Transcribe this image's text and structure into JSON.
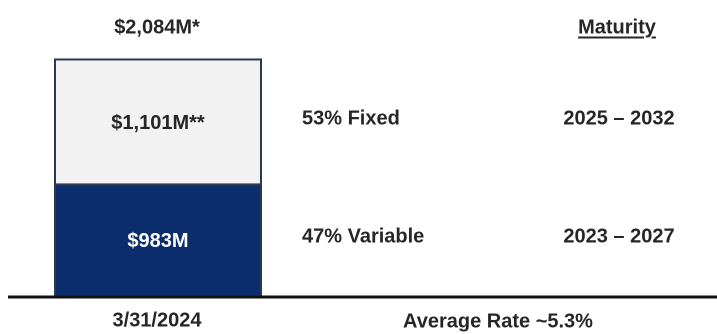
{
  "chart_data": {
    "type": "bar",
    "stacked": true,
    "title": "",
    "categories": [
      "3/31/2024"
    ],
    "series": [
      {
        "name": "",
        "values": [
          983
        ],
        "label": "$983M",
        "color": "#0c2d6b",
        "share_label": "47% Variable",
        "maturity": "2023 – 2027"
      },
      {
        "name": "",
        "values": [
          1101
        ],
        "label": "$1,101M**",
        "color": "#f2f2f2",
        "share_label": "53% Fixed",
        "maturity": "2025 – 2032"
      }
    ],
    "total": 2084,
    "total_label": "$2,084M*",
    "maturity_header": "Maturity",
    "average_rate_label": "Average Rate ~5.3%",
    "colors": {
      "border": "#2b3a52",
      "text": "#262626",
      "text_on_dark": "#ffffff"
    }
  }
}
